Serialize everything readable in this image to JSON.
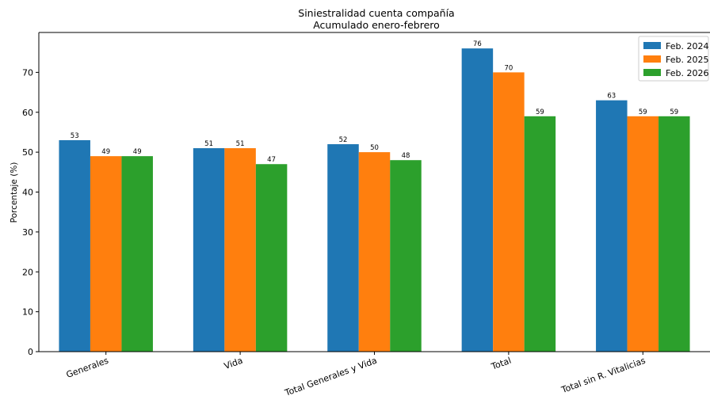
{
  "chart_data": {
    "type": "bar",
    "title": "Siniestralidad cuenta compañía",
    "subtitle": "Acumulado enero-febrero",
    "xlabel": "",
    "ylabel": "Porcentaje (%)",
    "ylim": [
      0,
      80
    ],
    "yticks": [
      0,
      10,
      20,
      30,
      40,
      50,
      60,
      70
    ],
    "categories": [
      "Generales",
      "Vida",
      "Total Generales y Vida",
      "Total",
      "Total sin R. Vitalicias"
    ],
    "series": [
      {
        "name": "Feb. 2024",
        "color": "#1f77b4",
        "values": [
          53,
          51,
          52,
          76,
          63
        ]
      },
      {
        "name": "Feb. 2025",
        "color": "#ff7f0e",
        "values": [
          49,
          51,
          50,
          70,
          59
        ]
      },
      {
        "name": "Feb. 2026",
        "color": "#2ca02c",
        "values": [
          49,
          47,
          48,
          59,
          59
        ]
      }
    ],
    "legend_position": "top-right",
    "grid": false
  }
}
